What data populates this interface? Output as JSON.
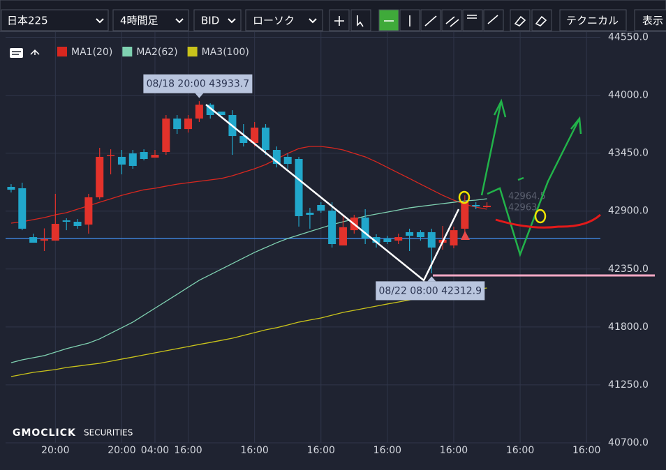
{
  "toolbar": {
    "symbol": "日本225",
    "timeframe": "4時間足",
    "price_type": "BID",
    "chart_style": "ローソク",
    "technical": "テクニカル",
    "display": "表示"
  },
  "chart_data": {
    "type": "candlestick",
    "legend": [
      "MA1(20)",
      "MA2(62)",
      "MA3(100)"
    ],
    "up_color": "#e3322b",
    "down_color": "#21a7cb",
    "open": [
      43130,
      43117,
      42653,
      42620,
      42620,
      42812,
      42799,
      42772,
      43031,
      43434,
      43415,
      43448,
      43461,
      43408,
      43461,
      43779,
      43679,
      43779,
      43911,
      43845,
      43812,
      43613,
      43547,
      43693,
      43481,
      43415,
      43395,
      42885,
      42958,
      42905,
      42574,
      42719,
      42839,
      42653,
      42640,
      42620,
      42700,
      42700,
      42700,
      42600,
      42574,
      42733,
      42958,
      42938
    ],
    "high": [
      43156,
      43170,
      42686,
      42736,
      43064,
      42832,
      42825,
      43064,
      43501,
      43487,
      43481,
      43481,
      43487,
      43481,
      43812,
      43812,
      43812,
      43944,
      43924,
      43845,
      43858,
      43726,
      43746,
      43726,
      43514,
      43448,
      43415,
      42931,
      42984,
      42984,
      42859,
      42865,
      42918,
      42680,
      42666,
      42686,
      42733,
      42719,
      42733,
      42759,
      42753,
      43050,
      42984,
      42984
    ],
    "low": [
      43077,
      42719,
      42600,
      42521,
      42620,
      42719,
      42733,
      42686,
      43011,
      43249,
      43249,
      43302,
      43382,
      43408,
      43434,
      43633,
      43646,
      43746,
      43779,
      43812,
      43434,
      43514,
      43514,
      43434,
      43315,
      43302,
      42753,
      42733,
      42885,
      42554,
      42574,
      42686,
      42587,
      42554,
      42587,
      42587,
      42521,
      42620,
      42309,
      42534,
      42547,
      42686,
      42918,
      42931
    ],
    "close": [
      43103,
      42733,
      42600,
      42633,
      42779,
      42799,
      42759,
      43031,
      43415,
      43434,
      43342,
      43329,
      43395,
      43434,
      43779,
      43679,
      43779,
      43911,
      43812,
      43812,
      43613,
      43547,
      43693,
      43481,
      43348,
      43348,
      42852,
      42865,
      42905,
      42587,
      42747,
      42839,
      42640,
      42600,
      42607,
      42653,
      42666,
      42653,
      42554,
      42627,
      42719,
      42984,
      42945,
      42951
    ],
    "series": [
      {
        "name": "MA1(20)",
        "color": "#d8271f",
        "values": [
          42786,
          42799,
          42819,
          42839,
          42865,
          42885,
          42918,
          42951,
          42984,
          43017,
          43050,
          43077,
          43103,
          43117,
          43137,
          43156,
          43170,
          43183,
          43196,
          43210,
          43236,
          43269,
          43302,
          43342,
          43395,
          43448,
          43494,
          43514,
          43514,
          43501,
          43481,
          43448,
          43415,
          43368,
          43315,
          43262,
          43210,
          43156,
          43103,
          43050,
          43004,
          42964,
          42938,
          42918
        ]
      },
      {
        "name": "MA2(62)",
        "color": "#7fd1b1",
        "values": [
          41461,
          41488,
          41508,
          41528,
          41561,
          41594,
          41620,
          41647,
          41687,
          41740,
          41793,
          41846,
          41912,
          41978,
          42044,
          42110,
          42177,
          42243,
          42296,
          42349,
          42402,
          42455,
          42508,
          42554,
          42600,
          42640,
          42673,
          42706,
          42739,
          42772,
          42799,
          42825,
          42852,
          42872,
          42891,
          42911,
          42931,
          42945,
          42958,
          42971,
          42984,
          42997,
          43004,
          43017
        ]
      },
      {
        "name": "MA3(100)",
        "color": "#c9c31b",
        "values": [
          41329,
          41349,
          41369,
          41382,
          41395,
          41415,
          41428,
          41442,
          41455,
          41475,
          41495,
          41514,
          41534,
          41554,
          41574,
          41594,
          41614,
          41634,
          41653,
          41673,
          41693,
          41720,
          41746,
          41773,
          41793,
          41819,
          41846,
          41866,
          41885,
          41912,
          41938,
          41958,
          41978,
          41998,
          42018,
          42037,
          42057,
          42077,
          42097,
          42117,
          42130,
          42143,
          42157,
          42170
        ]
      }
    ],
    "ylim": [
      40700,
      44600
    ],
    "yticks": [
      {
        "value": 40700,
        "label": "40700.0"
      },
      {
        "value": 41250,
        "label": "41250.0"
      },
      {
        "value": 41800,
        "label": "41800.0"
      },
      {
        "value": 42350,
        "label": "42350.0"
      },
      {
        "value": 42900,
        "label": "42900.0"
      },
      {
        "value": 43450,
        "label": "43450.0"
      },
      {
        "value": 44000,
        "label": "44000.0"
      },
      {
        "value": 44550,
        "label": "44550.0"
      }
    ],
    "xlim": [
      -0.5,
      53.25
    ],
    "xticks": [
      {
        "value": 4,
        "label": "20:00"
      },
      {
        "value": 10,
        "label": "20:00"
      },
      {
        "value": 13,
        "label": "04:00"
      },
      {
        "value": 16,
        "label": "16:00"
      },
      {
        "value": 22,
        "label": "16:00"
      },
      {
        "value": 28,
        "label": "16:00"
      },
      {
        "value": 34,
        "label": "16:00"
      },
      {
        "value": 40,
        "label": "16:00"
      },
      {
        "value": 46,
        "label": "16:00"
      },
      {
        "value": 52,
        "label": "16:00"
      }
    ],
    "price_line": 42640,
    "price_labels": [
      "42964.5",
      "42963"
    ],
    "annotations": [
      {
        "text": "08/18 20:00 43933.7",
        "value": 43933.7,
        "index": 17
      },
      {
        "text": "08/22 08:00 42312.9",
        "value": 42312.9,
        "index": 38
      }
    ],
    "grid": true,
    "logo": [
      "GMOCLICK",
      "SECURITIES"
    ]
  }
}
